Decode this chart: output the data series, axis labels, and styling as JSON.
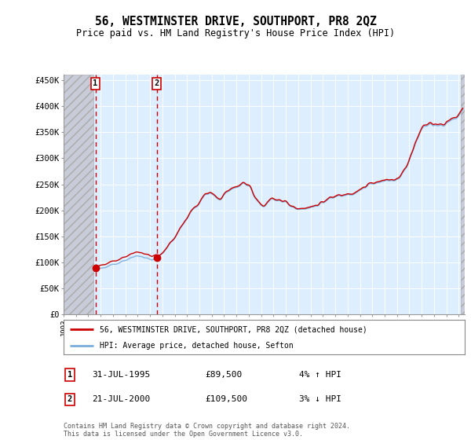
{
  "title": "56, WESTMINSTER DRIVE, SOUTHPORT, PR8 2QZ",
  "subtitle": "Price paid vs. HM Land Registry's House Price Index (HPI)",
  "ylabel_ticks": [
    "£0",
    "£50K",
    "£100K",
    "£150K",
    "£200K",
    "£250K",
    "£300K",
    "£350K",
    "£400K",
    "£450K"
  ],
  "ytick_values": [
    0,
    50000,
    100000,
    150000,
    200000,
    250000,
    300000,
    350000,
    400000,
    450000
  ],
  "ylim": [
    0,
    460000
  ],
  "sale1_year": 1995.58,
  "sale1_price": 89500,
  "sale2_year": 2000.55,
  "sale2_price": 109500,
  "sale1_date": "31-JUL-1995",
  "sale1_hpi": "4% ↑ HPI",
  "sale2_date": "21-JUL-2000",
  "sale2_hpi": "3% ↓ HPI",
  "sale_color": "#cc0000",
  "hpi_color": "#7aaddb",
  "background_color": "#ddeeff",
  "hatch_color": "#bbbbcc",
  "legend1_label": "56, WESTMINSTER DRIVE, SOUTHPORT, PR8 2QZ (detached house)",
  "legend2_label": "HPI: Average price, detached house, Sefton",
  "footnote": "Contains HM Land Registry data © Crown copyright and database right 2024.\nThis data is licensed under the Open Government Licence v3.0.",
  "xlim_start": 1993.0,
  "xlim_end": 2025.5,
  "hatch_end": 1995.42,
  "hatch_start2": 2025.17
}
